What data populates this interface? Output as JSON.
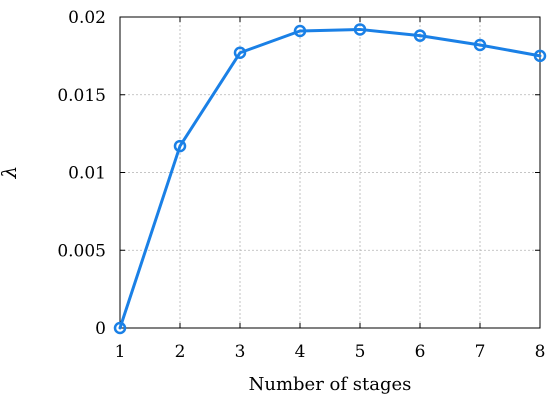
{
  "chart_data": {
    "type": "line",
    "title": "",
    "xlabel": "Number of stages",
    "ylabel": "λ",
    "x": [
      1,
      2,
      3,
      4,
      5,
      6,
      7,
      8
    ],
    "xlim": [
      1,
      8
    ],
    "ylim": [
      0,
      0.02
    ],
    "xticks": [
      1,
      2,
      3,
      4,
      5,
      6,
      7,
      8
    ],
    "xtick_labels": [
      "1",
      "2",
      "3",
      "4",
      "5",
      "6",
      "7",
      "8"
    ],
    "yticks": [
      0,
      0.005,
      0.01,
      0.015,
      0.02
    ],
    "ytick_labels": [
      "0",
      "0.005",
      "0.01",
      "0.015",
      "0.02"
    ],
    "grid": true,
    "series": [
      {
        "color": "#1a80e6",
        "marker": "circle",
        "values": [
          0.0,
          0.0117,
          0.0177,
          0.0191,
          0.0192,
          0.0188,
          0.0182,
          0.0175
        ]
      }
    ]
  }
}
